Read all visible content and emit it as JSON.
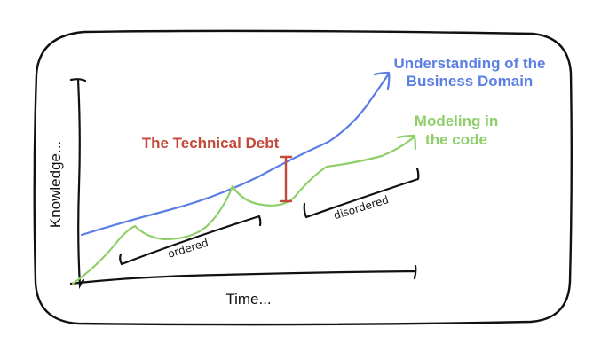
{
  "labels": {
    "understanding_line1": "Understanding of the",
    "understanding_line2": "Business Domain",
    "modeling_line1": "Modeling in",
    "modeling_line2": "the code",
    "technical_debt": "The Technical Debt",
    "y_axis": "Knowledge...",
    "x_axis": "Time...",
    "ordered": "ordered",
    "disordered": "disordered"
  },
  "colors": {
    "understanding": "#5b7ee5",
    "modeling": "#8fcf6a",
    "debt": "#c4493a",
    "ink": "#111111"
  }
}
